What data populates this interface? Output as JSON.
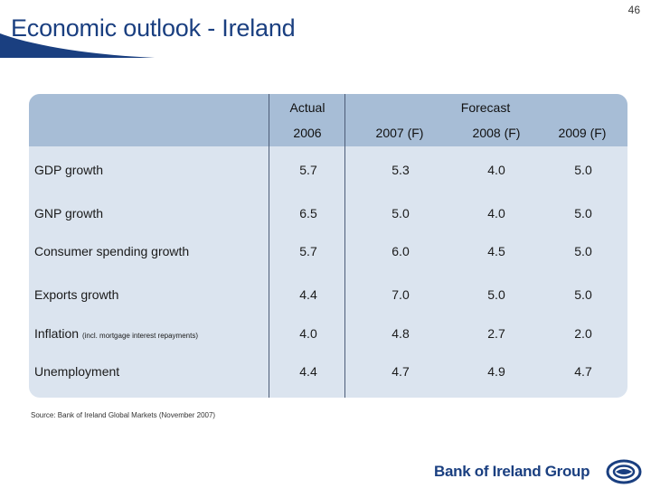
{
  "page": {
    "title": "Economic outlook - Ireland",
    "number": "46"
  },
  "table": {
    "group_headers": {
      "actual": "Actual",
      "forecast": "Forecast"
    },
    "columns": [
      "2006",
      "2007 (F)",
      "2008 (F)",
      "2009 (F)"
    ],
    "rows": [
      {
        "label": "GDP growth",
        "note": "",
        "values": [
          "5.7",
          "5.3",
          "4.0",
          "5.0"
        ]
      },
      {
        "label": "GNP growth",
        "note": "",
        "values": [
          "6.5",
          "5.0",
          "4.0",
          "5.0"
        ]
      },
      {
        "label": "Consumer spending growth",
        "note": "",
        "values": [
          "5.7",
          "6.0",
          "4.5",
          "5.0"
        ]
      },
      {
        "label": "Exports growth",
        "note": "",
        "values": [
          "4.4",
          "7.0",
          "5.0",
          "5.0"
        ]
      },
      {
        "label": "Inflation",
        "note": "(incl. mortgage interest repayments)",
        "values": [
          "4.0",
          "4.8",
          "2.7",
          "2.0"
        ]
      },
      {
        "label": "Unemployment",
        "note": "",
        "values": [
          "4.4",
          "4.7",
          "4.9",
          "4.7"
        ]
      }
    ]
  },
  "source": "Source: Bank of Ireland Global Markets (November 2007)",
  "brand": {
    "name": "Bank of Ireland Group",
    "logo_icon": "bank-of-ireland-logo-icon"
  },
  "colors": {
    "brand_blue": "#1a3f80",
    "panel": "#dbe4ef",
    "panel_head": "#a7bdd6"
  }
}
